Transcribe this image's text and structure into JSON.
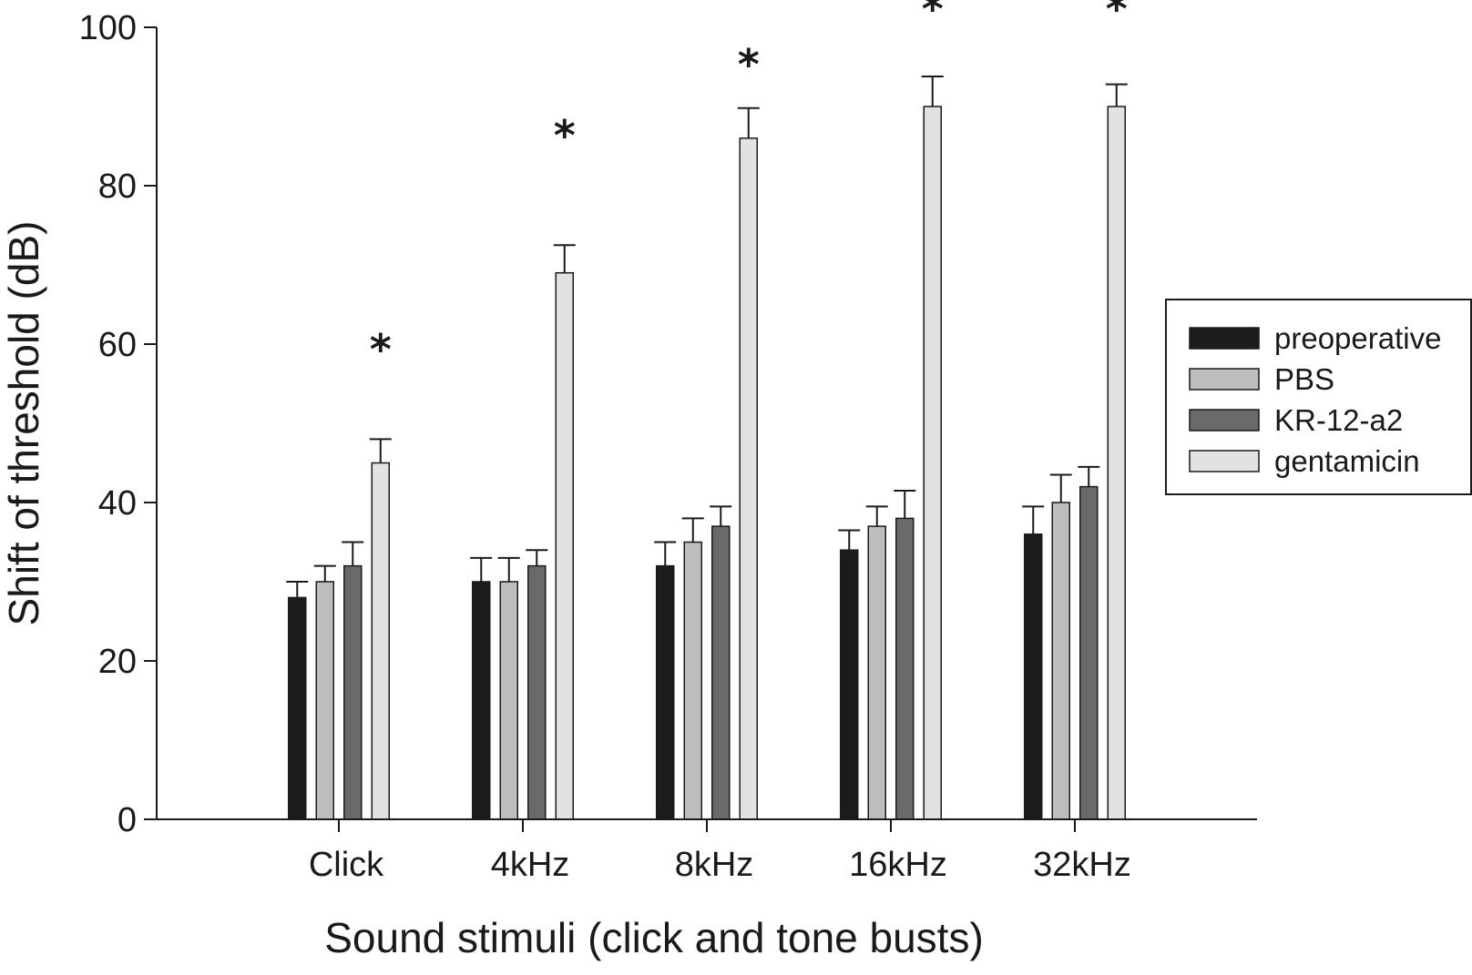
{
  "chart_data": {
    "type": "bar",
    "title": "",
    "xlabel": "Sound stimuli (click and tone busts)",
    "ylabel": "Shift of threshold (dB)",
    "ylim": [
      0,
      100
    ],
    "yticks": [
      0,
      20,
      40,
      60,
      80,
      100
    ],
    "categories": [
      "Click",
      "4kHz",
      "8kHz",
      "16kHz",
      "32kHz"
    ],
    "series": [
      {
        "name": "preoperative",
        "color": "#1c1c1c",
        "values": [
          28,
          30,
          32,
          34,
          36
        ],
        "errors": [
          2,
          3,
          3,
          2.5,
          3.5
        ]
      },
      {
        "name": "PBS",
        "color": "#bdbdbd",
        "values": [
          30,
          30,
          35,
          37,
          40
        ],
        "errors": [
          2,
          3,
          3,
          2.5,
          3.5
        ]
      },
      {
        "name": "KR-12-a2",
        "color": "#6a6a6a",
        "values": [
          32,
          32,
          37,
          38,
          42
        ],
        "errors": [
          3,
          2,
          2.5,
          3.5,
          2.5
        ]
      },
      {
        "name": "gentamicin",
        "color": "#e2e2e2",
        "values": [
          45,
          69,
          86,
          90,
          90
        ],
        "errors": [
          3,
          3.5,
          3.8,
          3.8,
          2.8
        ]
      }
    ],
    "significance_marker": "*",
    "significance_y": [
      60,
      87,
      96,
      103,
      103
    ],
    "legend_position": "right",
    "grid": false
  }
}
